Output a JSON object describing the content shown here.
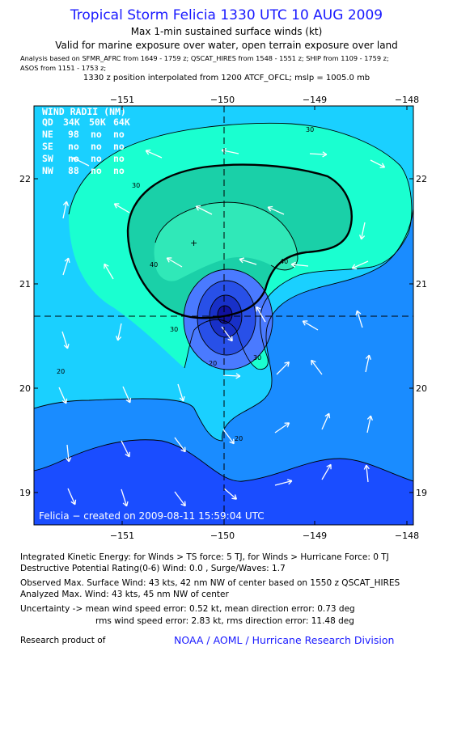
{
  "header": {
    "title": "Tropical Storm Felicia 1330 UTC 10 AUG 2009",
    "subtitle": "Max 1-min sustained surface winds (kt)",
    "valid": "Valid for marine exposure over water, open terrain exposure over land",
    "analysis_line1": "Analysis based on  SFMR_AFRC from 1649 - 1759 z;  QSCAT_HIRES from 1548 - 1551 z;  SHIP from 1109 - 1759 z;",
    "analysis_line2": "ASOS from 1151 - 1753 z;",
    "position_note": "1330 z position interpolated from 1200 ATCF_OFCL; mslp = 1005.0 mb"
  },
  "map": {
    "lon_ticks": [
      "−151",
      "−150",
      "−149",
      "−148"
    ],
    "lat_ticks": [
      "22",
      "21",
      "20",
      "19"
    ],
    "contour_labels": [
      "30",
      "30",
      "40",
      "40",
      "30",
      "30",
      "20",
      "20",
      "20"
    ],
    "wind_radii": {
      "title": "WIND RADII (NM)",
      "header": [
        "QD",
        "34K",
        "50K",
        "64K"
      ],
      "rows": [
        [
          "NE",
          "98",
          "no",
          "no"
        ],
        [
          "SE",
          "no",
          "no",
          "no"
        ],
        [
          "SW",
          "no",
          "no",
          "no"
        ],
        [
          "NW",
          "88",
          "no",
          "no"
        ]
      ]
    },
    "credit": "Felicia − created on 2009-08-11 15:59:04 UTC",
    "colors": {
      "lt20": "#1a4dff",
      "c20_30": "#1a8cff",
      "c30_40": "#1ad0ff",
      "c40_50": "#1affd0",
      "c50_60": "#1ad0a8",
      "core1": "#4a7aff",
      "core2": "#2850e8",
      "core3": "#1830c8",
      "core4": "#1010a0",
      "arrow": "#ffffff",
      "contour": "#000000"
    }
  },
  "stats": {
    "ike": "Integrated Kinetic Energy:  for Winds > TS force: 5 TJ,  for Winds > Hurricane Force: 0 TJ",
    "dpr": "Destructive Potential Rating(0-6)   Wind: 0.0 , Surge/Waves: 1.7",
    "observed": "Observed Max. Surface Wind: 43 kts, 42 nm NW of center based on 1550 z QSCAT_HIRES",
    "analyzed": "Analyzed Max. Wind: 43 kts, 45 nm NW of center",
    "uncertainty1": "Uncertainty -> mean wind speed error: 0.52 kt,   mean direction error: 0.73 deg",
    "uncertainty2": "rms wind speed error: 2.83 kt,   rms direction error: 11.48 deg"
  },
  "footer": {
    "research": "Research product of",
    "org_link": "NOAA / AOML / Hurricane Research Division"
  }
}
